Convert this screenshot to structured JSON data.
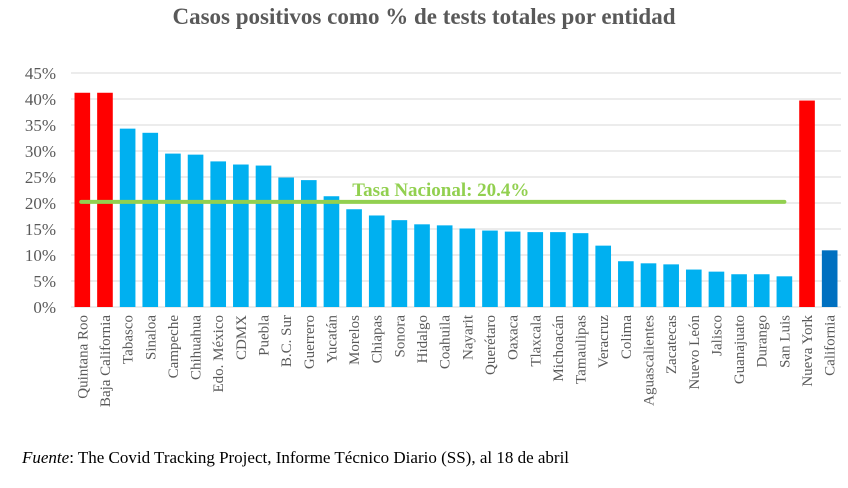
{
  "title": "Casos positivos como % de tests totales por entidad",
  "source": {
    "label": "Fuente",
    "text": ": The Covid Tracking Project, Informe Técnico Diario (SS), al 18 de abril"
  },
  "colors": {
    "default_bar": "#00b0f0",
    "highlight_bar": "#ff0000",
    "california_bar": "#0070c0",
    "reference_line": "#92d050",
    "grid": "#d9d9d9",
    "text": "#595959"
  },
  "chart_data": {
    "type": "bar",
    "ylim": [
      0,
      45
    ],
    "yticks": [
      0,
      5,
      10,
      15,
      20,
      25,
      30,
      35,
      40,
      45
    ],
    "ytick_labels": [
      "0%",
      "5%",
      "10%",
      "15%",
      "20%",
      "25%",
      "30%",
      "35%",
      "40%",
      "45%"
    ],
    "grid": true,
    "categories": [
      "Quintana Roo",
      "Baja California",
      "Tabasco",
      "Sinaloa",
      "Campeche",
      "Chihuahua",
      "Edo. México",
      "CDMX",
      "Puebla",
      "B.C. Sur",
      "Guerrero",
      "Yucatán",
      "Morelos",
      "Chiapas",
      "Sonora",
      "Hidalgo",
      "Coahuila",
      "Nayarit",
      "Querétaro",
      "Oaxaca",
      "Tlaxcala",
      "Michoacán",
      "Tamaulipas",
      "Veracruz",
      "Colima",
      "Aguascalientes",
      "Zacatecas",
      "Nuevo León",
      "Jalisco",
      "Guanajuato",
      "Durango",
      "San Luis",
      "Nueva York",
      "California"
    ],
    "values": [
      41.2,
      41.2,
      34.3,
      33.5,
      29.5,
      29.3,
      28.0,
      27.4,
      27.2,
      24.9,
      24.4,
      21.3,
      18.8,
      17.6,
      16.7,
      15.9,
      15.7,
      15.1,
      14.7,
      14.5,
      14.4,
      14.4,
      14.2,
      11.8,
      8.8,
      8.4,
      8.2,
      7.2,
      6.8,
      6.3,
      6.3,
      5.9,
      39.7,
      10.9
    ],
    "bar_colors": [
      "highlight_bar",
      "highlight_bar",
      "default_bar",
      "default_bar",
      "default_bar",
      "default_bar",
      "default_bar",
      "default_bar",
      "default_bar",
      "default_bar",
      "default_bar",
      "default_bar",
      "default_bar",
      "default_bar",
      "default_bar",
      "default_bar",
      "default_bar",
      "default_bar",
      "default_bar",
      "default_bar",
      "default_bar",
      "default_bar",
      "default_bar",
      "default_bar",
      "default_bar",
      "default_bar",
      "default_bar",
      "default_bar",
      "default_bar",
      "default_bar",
      "default_bar",
      "default_bar",
      "highlight_bar",
      "california_bar"
    ],
    "reference_line": {
      "label": "Tasa Nacional: 20.4%",
      "value": 20.4,
      "from_category": "Quintana Roo",
      "to_category": "San Luis"
    }
  }
}
